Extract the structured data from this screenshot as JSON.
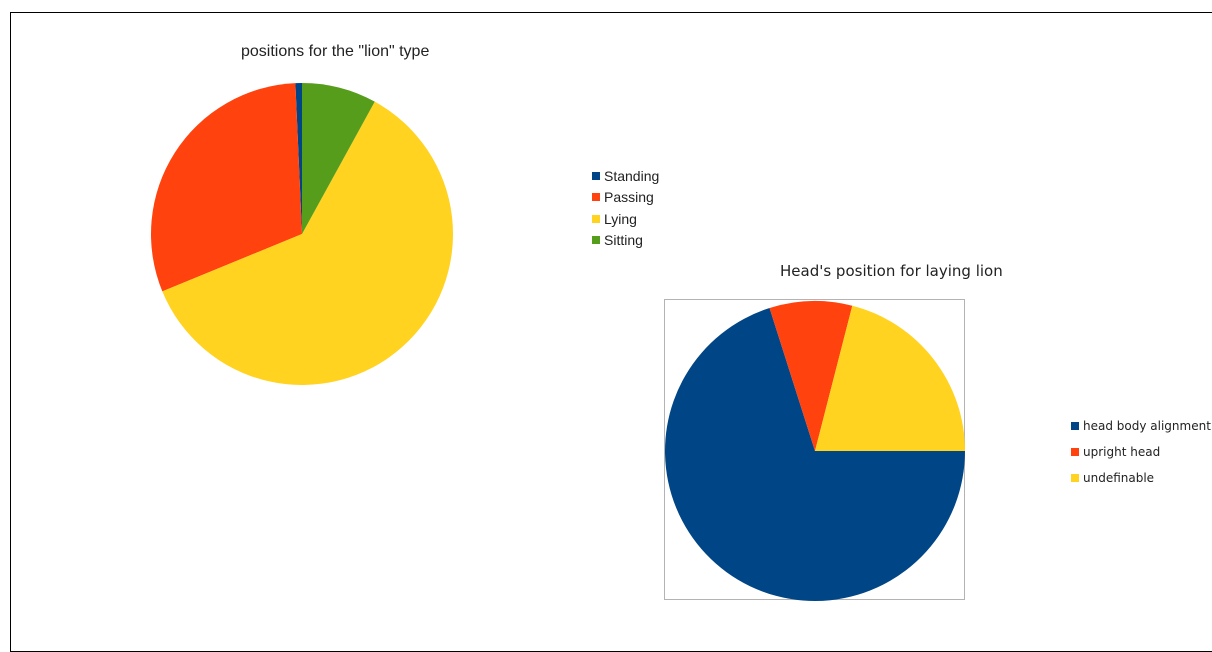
{
  "chart_data": [
    {
      "type": "pie",
      "title": "positions for the \"lion\" type",
      "categories": [
        "Standing",
        "Passing",
        "Lying",
        "Sitting"
      ],
      "values": [
        0.7,
        30.5,
        60.8,
        8.0
      ],
      "colors": [
        "#004586",
        "#ff420e",
        "#ffd320",
        "#579d1c"
      ],
      "legend": "right"
    },
    {
      "type": "pie",
      "title": "Head's position for laying lion",
      "categories": [
        "head body alignment",
        "upright head",
        "undefinable"
      ],
      "values": [
        70.1,
        8.9,
        21.0
      ],
      "colors": [
        "#004586",
        "#ff420e",
        "#ffd320"
      ],
      "legend": "right"
    }
  ]
}
